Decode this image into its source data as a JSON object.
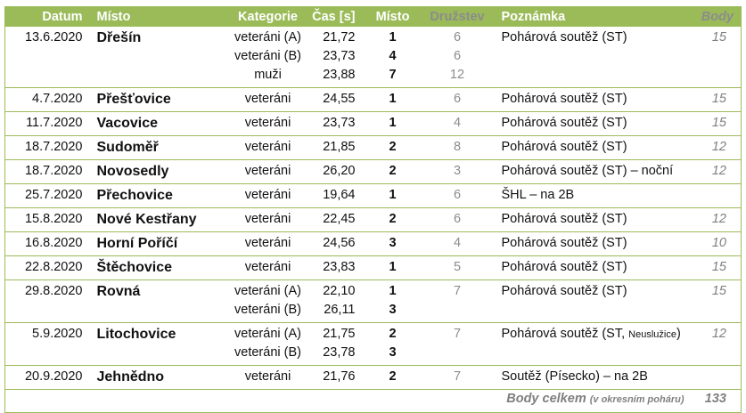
{
  "header": {
    "date": "Datum",
    "place": "Místo",
    "category": "Kategorie",
    "time": "Čas [s]",
    "rank": "Místo",
    "teams": "Družstev",
    "note": "Poznámka",
    "points": "Body"
  },
  "rows": [
    {
      "date": "13.6.2020",
      "place": "Dřešín",
      "entries": [
        {
          "category": "veteráni (A)",
          "time": "21,72",
          "rank": "1",
          "teams": "6"
        },
        {
          "category": "veteráni (B)",
          "time": "23,73",
          "rank": "4",
          "teams": "6"
        },
        {
          "category": "muži",
          "time": "23,88",
          "rank": "7",
          "teams": "12"
        }
      ],
      "note": "Pohárová soutěž (ST)",
      "points": "15"
    },
    {
      "date": "4.7.2020",
      "place": "Přešťovice",
      "entries": [
        {
          "category": "veteráni",
          "time": "24,55",
          "rank": "1",
          "teams": "6"
        }
      ],
      "note": "Pohárová soutěž (ST)",
      "points": "15"
    },
    {
      "date": "11.7.2020",
      "place": "Vacovice",
      "entries": [
        {
          "category": "veteráni",
          "time": "23,73",
          "rank": "1",
          "teams": "4"
        }
      ],
      "note": "Pohárová soutěž (ST)",
      "points": "15"
    },
    {
      "date": "18.7.2020",
      "place": "Sudoměř",
      "entries": [
        {
          "category": "veteráni",
          "time": "21,85",
          "rank": "2",
          "teams": "8"
        }
      ],
      "note": "Pohárová soutěž (ST)",
      "points": "12"
    },
    {
      "date": "18.7.2020",
      "place": "Novosedly",
      "entries": [
        {
          "category": "veteráni",
          "time": "26,20",
          "rank": "2",
          "teams": "3"
        }
      ],
      "note": "Pohárová soutěž (ST) – noční",
      "points": "12"
    },
    {
      "date": "25.7.2020",
      "place": "Přechovice",
      "entries": [
        {
          "category": "veteráni",
          "time": "19,64",
          "rank": "1",
          "teams": "6"
        }
      ],
      "note": "ŠHL – na 2B",
      "points": ""
    },
    {
      "date": "15.8.2020",
      "place": "Nové Kestřany",
      "entries": [
        {
          "category": "veteráni",
          "time": "22,45",
          "rank": "2",
          "teams": "6"
        }
      ],
      "note": "Pohárová soutěž (ST)",
      "points": "12"
    },
    {
      "date": "16.8.2020",
      "place": "Horní Poříčí",
      "entries": [
        {
          "category": "veteráni",
          "time": "24,56",
          "rank": "3",
          "teams": "4"
        }
      ],
      "note": "Pohárová soutěž (ST)",
      "points": "10"
    },
    {
      "date": "22.8.2020",
      "place": "Štěchovice",
      "entries": [
        {
          "category": "veteráni",
          "time": "23,83",
          "rank": "1",
          "teams": "5"
        }
      ],
      "note": "Pohárová soutěž (ST)",
      "points": "15"
    },
    {
      "date": "29.8.2020",
      "place": "Rovná",
      "entries": [
        {
          "category": "veteráni (A)",
          "time": "22,10",
          "rank": "1",
          "teams": "7"
        },
        {
          "category": "veteráni (B)",
          "time": "26,11",
          "rank": "3",
          "teams": ""
        }
      ],
      "note": "Pohárová soutěž (ST)",
      "points": "15"
    },
    {
      "date": "5.9.2020",
      "place": "Litochovice",
      "entries": [
        {
          "category": "veteráni (A)",
          "time": "21,75",
          "rank": "2",
          "teams": "7"
        },
        {
          "category": "veteráni (B)",
          "time": "23,78",
          "rank": "3",
          "teams": ""
        }
      ],
      "note": "Pohárová soutěž (ST, ",
      "note_small": "Neuslužice",
      "note_end": ")",
      "points": "12"
    },
    {
      "date": "20.9.2020",
      "place": "Jehnědno",
      "entries": [
        {
          "category": "veteráni",
          "time": "21,76",
          "rank": "2",
          "teams": "7"
        }
      ],
      "note": "Soutěž (Písecko) – na 2B",
      "points": ""
    }
  ],
  "total": {
    "label": "Body celkem",
    "sublabel": "(v okresním poháru)",
    "value": "133"
  },
  "colors": {
    "accent": "#9bbb59",
    "muted": "#808080"
  }
}
